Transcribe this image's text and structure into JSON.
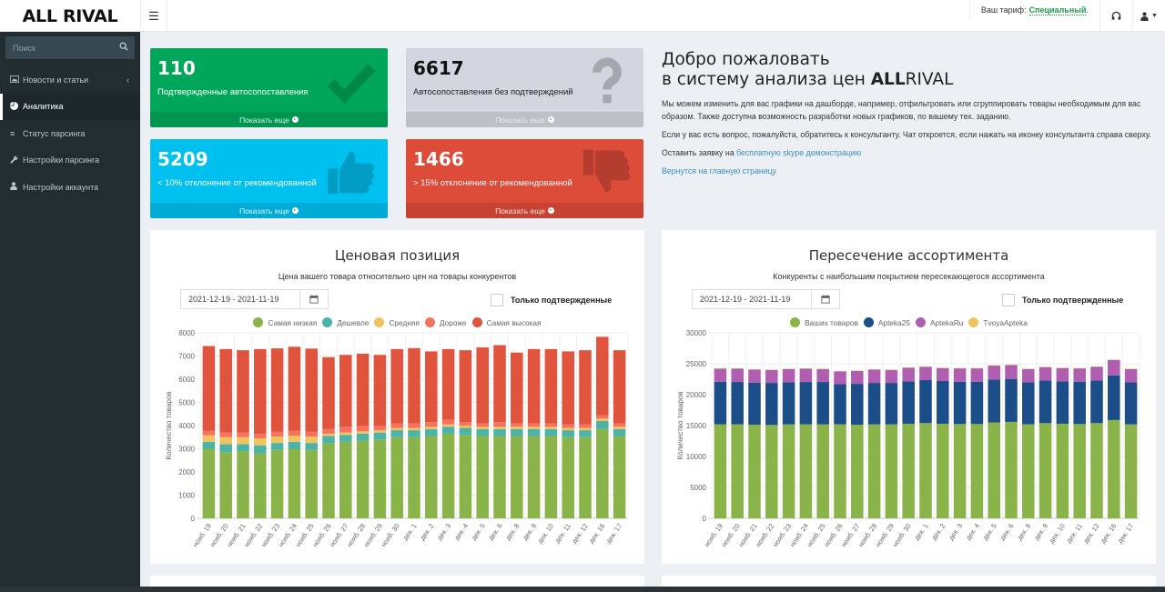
{
  "header": {
    "logo": "ALL RIVAL",
    "menu_toggle_icon": "hamburger-icon",
    "tariff_label": "Ваш тариф:",
    "tariff_plan": "Специальный",
    "tariff_suffix": ".",
    "support_icon": "headset-icon",
    "user_icon": "user-icon"
  },
  "sidebar": {
    "search_placeholder": "Поиск",
    "items": [
      {
        "label": "Новости и статьи",
        "icon": "image-icon",
        "active": false,
        "has_arrow": true
      },
      {
        "label": "Аналитика",
        "icon": "pie-chart-icon",
        "active": true
      },
      {
        "label": "Статус парсинга",
        "icon": "list-icon",
        "active": false
      },
      {
        "label": "Настройки парсинга",
        "icon": "wrench-icon",
        "active": false
      },
      {
        "label": "Настройки аккаунта",
        "icon": "user-icon",
        "active": false
      }
    ]
  },
  "stats": [
    {
      "value": "110",
      "label": "Подтвержденные автосопоставления",
      "footer": "Показать еще",
      "icon": "check-icon",
      "color": "#00a65a"
    },
    {
      "value": "6617",
      "label": "Автосопоставления без подтверждений",
      "footer": "Показать еще",
      "icon": "question-icon",
      "color": "#d2d6de"
    },
    {
      "value": "5209",
      "label": "< 10% отклонение от рекомендованной",
      "footer": "Показать еще",
      "icon": "thumbs-up-icon",
      "color": "#00c0ef"
    },
    {
      "value": "1466",
      "label": "> 15% отклонение от рекомендованной",
      "footer": "Показать еще",
      "icon": "thumbs-down-icon",
      "color": "#dd4b39"
    }
  ],
  "welcome": {
    "title_line1": "Добро пожаловать",
    "title_line2_prefix": "в систему анализа цен ",
    "title_brand_bold": "ALL",
    "title_brand_rest": "RIVAL",
    "para1": "Мы можем изменить для вас графики на дашборде, например, отфильтровать или сгруппировать товары необходимым для вас образом. Также доступна возможность разработки новых графиков, по вашему тех. заданию.",
    "para2": "Если у вас есть вопрос, пожалуйста, обратитесь к консультанту. Чат откроется, если нажать на иконку консультанта справа сверху.",
    "para3_prefix": "Оставить заявку на ",
    "para3_link": "бесплатную skype демонстрацию",
    "back_link": "Вернутся на главную страницу"
  },
  "panels": {
    "price": {
      "title": "Ценовая позиция",
      "subtitle": "Цена вашего товара относительно цен на товары конкурентов",
      "date_range": "2021-12-19 - 2021-11-19",
      "confirmed_label": "Только подтвержденные"
    },
    "assortment": {
      "title": "Пересечение ассортимента",
      "subtitle": "Конкуренты с наибольшим покрытием пересекающегося ассортимента",
      "date_range": "2021-12-19 - 2021-11-19",
      "confirmed_label": "Только подтвержденные"
    }
  },
  "chart_data": [
    {
      "type": "bar",
      "stacked": true,
      "title": "Ценовая позиция",
      "xlabel": "",
      "ylabel": "Количество товаров",
      "ylim": [
        0,
        8000
      ],
      "yticks": [
        0,
        1000,
        2000,
        3000,
        4000,
        5000,
        6000,
        7000,
        8000
      ],
      "grid": true,
      "legend": "top",
      "categories": [
        "нояб. 19",
        "нояб. 20",
        "нояб. 21",
        "нояб. 22",
        "нояб. 23",
        "нояб. 24",
        "нояб. 25",
        "нояб. 26",
        "нояб. 27",
        "нояб. 28",
        "нояб. 29",
        "нояб. 30",
        "дек. 1",
        "дек. 2",
        "дек. 3",
        "дек. 4",
        "дек. 5",
        "дек. 6",
        "дек. 8",
        "дек. 9",
        "дек. 10",
        "дек. 11",
        "дек. 12",
        "дек. 16",
        "дек. 17"
      ],
      "series": [
        {
          "name": "Самая низкая",
          "color": "#8ab44a",
          "values": [
            3000,
            2850,
            2900,
            2800,
            2950,
            3000,
            2950,
            3250,
            3300,
            3350,
            3400,
            3500,
            3500,
            3550,
            3650,
            3600,
            3550,
            3550,
            3550,
            3550,
            3550,
            3500,
            3500,
            3850,
            3550
          ]
        },
        {
          "name": "Дешевле",
          "color": "#4bb3a8",
          "values": [
            300,
            350,
            300,
            350,
            300,
            300,
            300,
            300,
            300,
            300,
            300,
            300,
            300,
            300,
            300,
            300,
            300,
            300,
            300,
            300,
            300,
            300,
            300,
            350,
            300
          ]
        },
        {
          "name": "Средняя",
          "color": "#f1c35d",
          "values": [
            280,
            300,
            300,
            300,
            280,
            270,
            280,
            100,
            100,
            100,
            100,
            100,
            100,
            100,
            100,
            100,
            100,
            100,
            100,
            100,
            100,
            100,
            100,
            100,
            100
          ]
        },
        {
          "name": "Дороже",
          "color": "#f5725f",
          "values": [
            200,
            200,
            200,
            200,
            200,
            200,
            200,
            200,
            250,
            250,
            200,
            200,
            200,
            200,
            200,
            150,
            150,
            200,
            150,
            150,
            150,
            150,
            150,
            150,
            150
          ]
        },
        {
          "name": "Самая высокая",
          "color": "#e0533d",
          "values": [
            3650,
            3600,
            3550,
            3650,
            3600,
            3630,
            3590,
            3100,
            3100,
            3100,
            3050,
            3200,
            3240,
            3050,
            3050,
            3100,
            3270,
            3320,
            3050,
            3200,
            3200,
            3150,
            3200,
            3380,
            3150
          ]
        }
      ]
    },
    {
      "type": "bar",
      "stacked": true,
      "title": "Пересечение ассортимента",
      "xlabel": "",
      "ylabel": "Количество товаров",
      "ylim": [
        0,
        30000
      ],
      "yticks": [
        0,
        5000,
        10000,
        15000,
        20000,
        25000,
        30000
      ],
      "grid": true,
      "legend": "top",
      "categories": [
        "нояб. 19",
        "нояб. 20",
        "нояб. 21",
        "нояб. 22",
        "нояб. 23",
        "нояб. 24",
        "нояб. 25",
        "нояб. 26",
        "нояб. 27",
        "нояб. 28",
        "нояб. 29",
        "нояб. 30",
        "дек. 1",
        "дек. 2",
        "дек. 3",
        "дек. 4",
        "дек. 5",
        "дек. 6",
        "дек. 8",
        "дек. 9",
        "дек. 10",
        "дек. 11",
        "дек. 12",
        "дек. 16",
        "дек. 17"
      ],
      "series": [
        {
          "name": "Ваших товаров",
          "color": "#8ab44a",
          "values": [
            15200,
            15200,
            15150,
            15100,
            15200,
            15200,
            15200,
            15200,
            15150,
            15200,
            15200,
            15300,
            15400,
            15300,
            15250,
            15250,
            15500,
            15600,
            15200,
            15400,
            15300,
            15250,
            15400,
            15900,
            15200
          ]
        },
        {
          "name": "Apteka25",
          "color": "#1b4d88",
          "values": [
            6900,
            6850,
            6800,
            6800,
            6800,
            6850,
            6850,
            6500,
            6600,
            6700,
            6700,
            6850,
            6950,
            6900,
            6850,
            6850,
            6950,
            6950,
            6800,
            6900,
            6850,
            6850,
            6900,
            7200,
            6800
          ]
        },
        {
          "name": "AptekaRu",
          "color": "#b05fb0",
          "values": [
            2100,
            2150,
            2100,
            2100,
            2150,
            2150,
            2100,
            2050,
            2100,
            2150,
            2100,
            2200,
            2150,
            2100,
            2150,
            2150,
            2250,
            2250,
            2150,
            2150,
            2150,
            2150,
            2200,
            2500,
            2150
          ]
        },
        {
          "name": "TvoyaApteka",
          "color": "#f1c35d",
          "values": [
            60,
            60,
            60,
            60,
            60,
            60,
            60,
            60,
            60,
            60,
            60,
            60,
            60,
            60,
            60,
            60,
            60,
            60,
            60,
            60,
            60,
            60,
            60,
            80,
            60
          ]
        }
      ]
    }
  ]
}
